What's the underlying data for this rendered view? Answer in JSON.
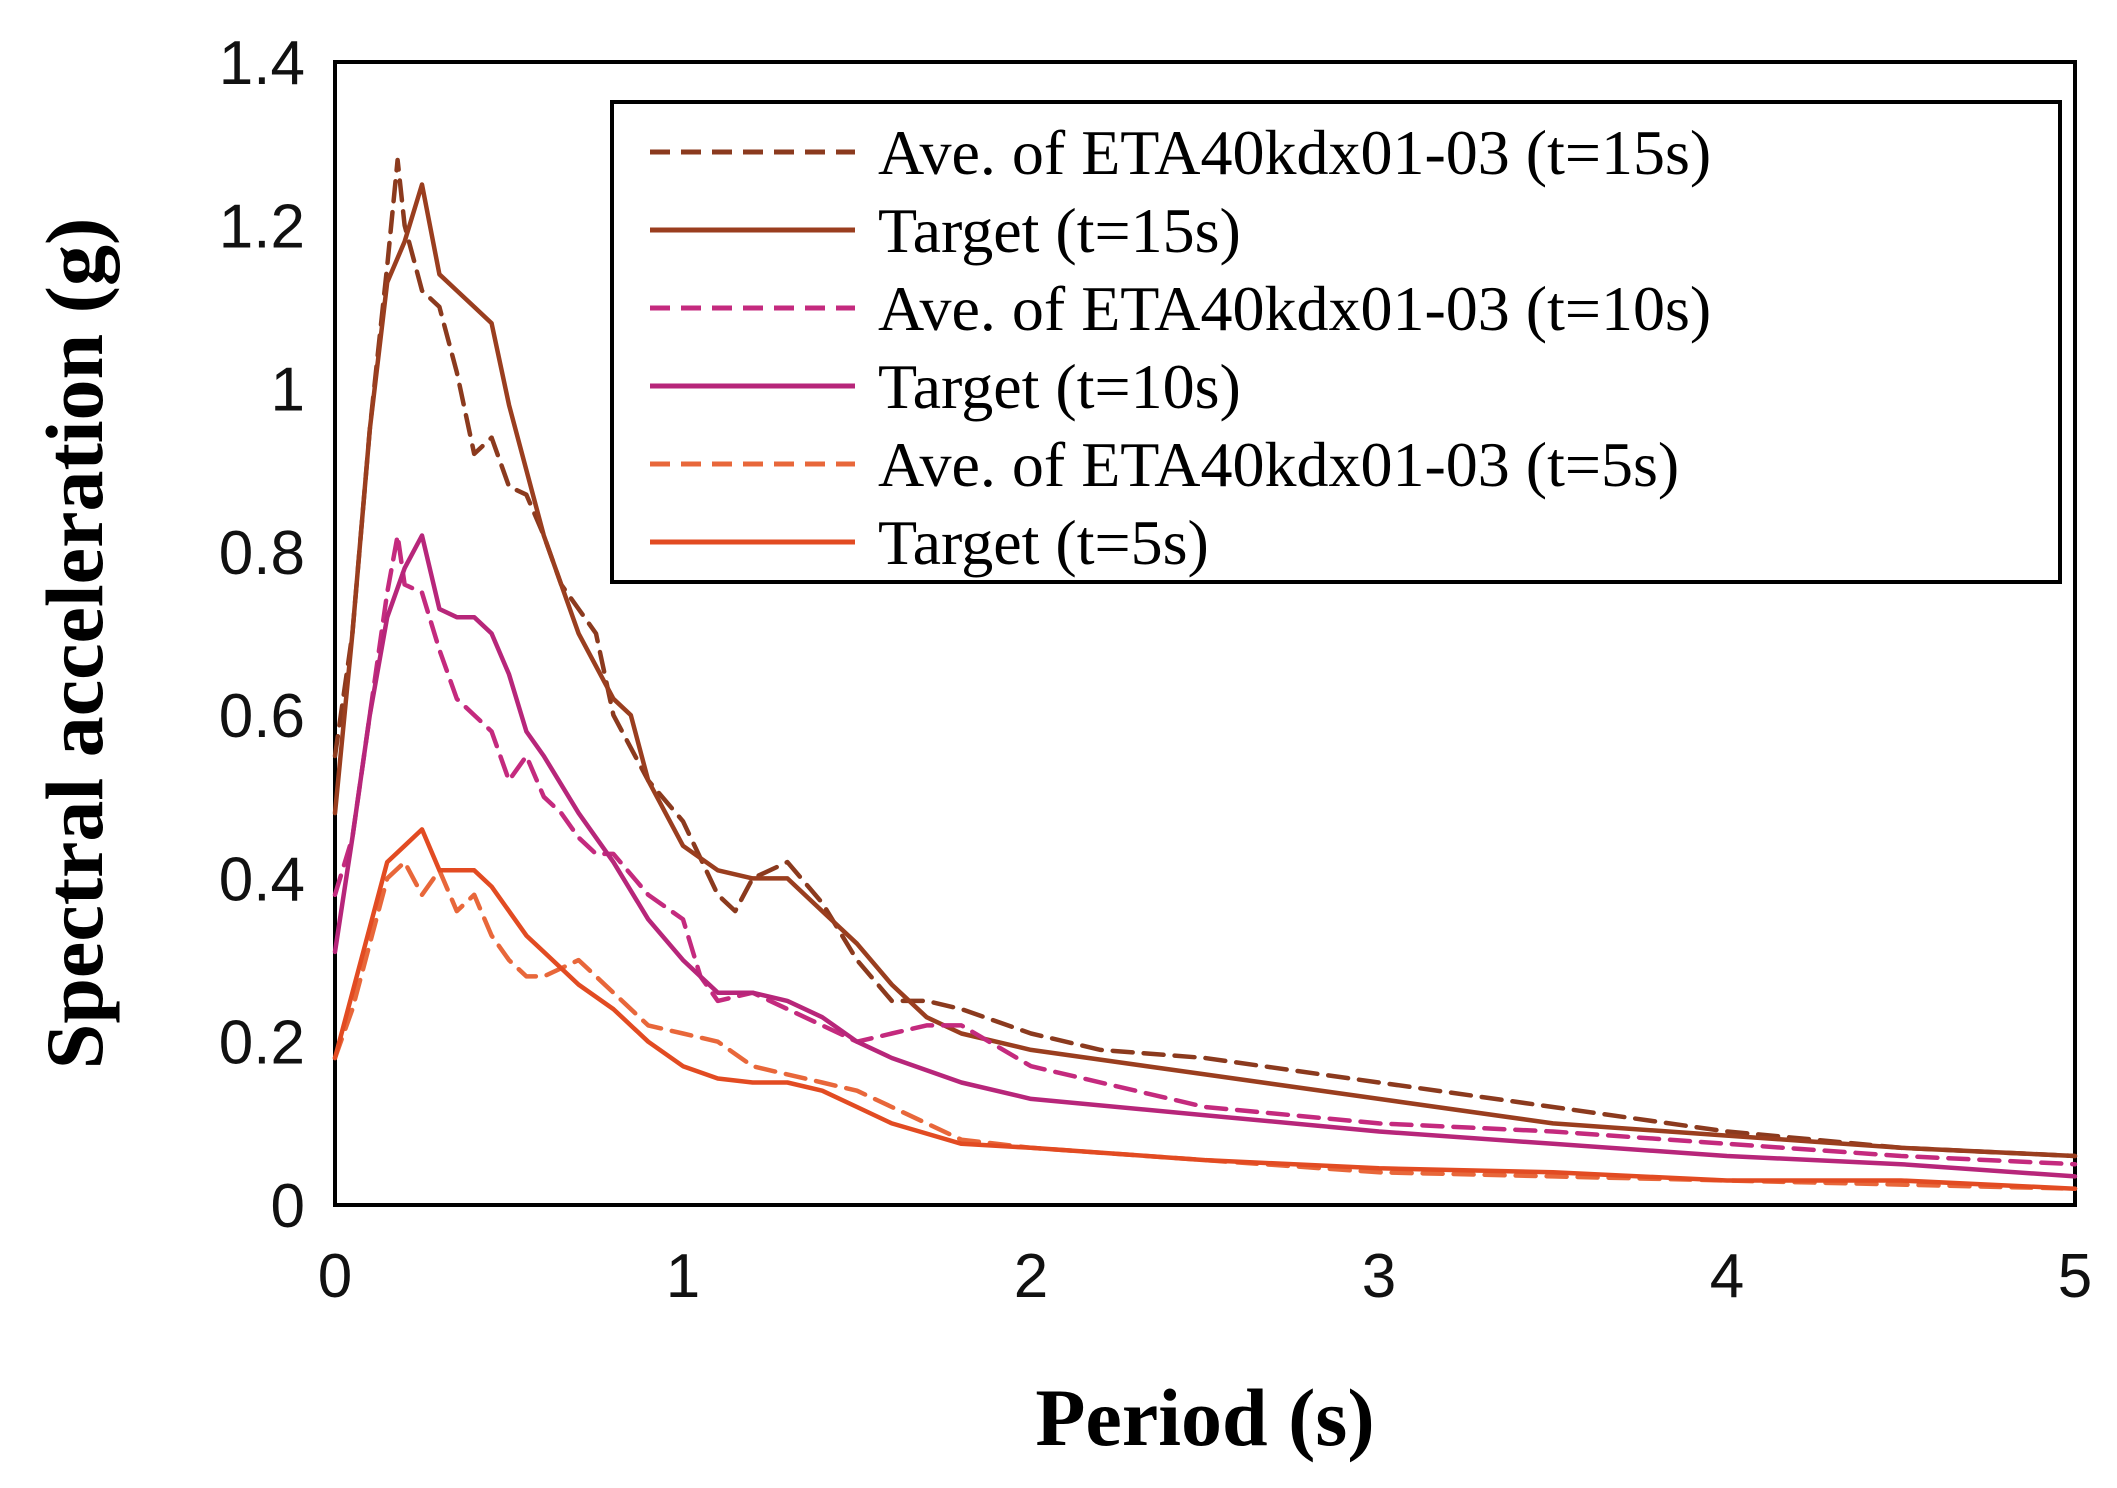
{
  "chart_data": {
    "type": "line",
    "title": "",
    "xlabel": "Period (s)",
    "ylabel": "Spectral acceleration (g)",
    "xlim": [
      0,
      5
    ],
    "ylim": [
      0,
      1.4
    ],
    "xticks": [
      0,
      1,
      2,
      3,
      4,
      5
    ],
    "xtick_labels": [
      "0",
      "1",
      "2",
      "3",
      "4",
      "5"
    ],
    "yticks": [
      0,
      0.2,
      0.4,
      0.6,
      0.8,
      1.0,
      1.2,
      1.4
    ],
    "ytick_labels": [
      "0",
      "0.2",
      "0.4",
      "0.6",
      "0.8",
      "1",
      "1.2",
      "1.4"
    ],
    "grid": false,
    "legend_position": "top-right",
    "series": [
      {
        "name": "Ave. of ETA40kdx01-03 (t=15s)",
        "color": "#8B3A1E",
        "dash": "dashed",
        "x": [
          0,
          0.05,
          0.1,
          0.15,
          0.18,
          0.2,
          0.25,
          0.3,
          0.35,
          0.4,
          0.45,
          0.5,
          0.55,
          0.6,
          0.65,
          0.7,
          0.75,
          0.8,
          0.9,
          1.0,
          1.1,
          1.15,
          1.2,
          1.3,
          1.4,
          1.5,
          1.6,
          1.7,
          1.8,
          2.0,
          2.2,
          2.5,
          3.0,
          3.5,
          4.0,
          4.5,
          5.0
        ],
        "y": [
          0.55,
          0.7,
          0.95,
          1.15,
          1.28,
          1.2,
          1.12,
          1.1,
          1.02,
          0.92,
          0.94,
          0.88,
          0.87,
          0.82,
          0.76,
          0.73,
          0.7,
          0.6,
          0.52,
          0.47,
          0.38,
          0.36,
          0.4,
          0.42,
          0.37,
          0.3,
          0.25,
          0.25,
          0.24,
          0.21,
          0.19,
          0.18,
          0.15,
          0.12,
          0.09,
          0.07,
          0.06
        ]
      },
      {
        "name": "Target (t=15s)",
        "color": "#9A3E1F",
        "dash": "solid",
        "x": [
          0,
          0.05,
          0.1,
          0.15,
          0.2,
          0.25,
          0.3,
          0.35,
          0.4,
          0.45,
          0.5,
          0.55,
          0.6,
          0.7,
          0.8,
          0.85,
          0.9,
          1.0,
          1.1,
          1.2,
          1.3,
          1.4,
          1.5,
          1.6,
          1.7,
          1.8,
          2.0,
          2.5,
          3.0,
          3.5,
          4.0,
          4.5,
          5.0
        ],
        "y": [
          0.48,
          0.7,
          0.95,
          1.13,
          1.18,
          1.25,
          1.14,
          1.12,
          1.1,
          1.08,
          0.98,
          0.9,
          0.82,
          0.7,
          0.62,
          0.6,
          0.52,
          0.44,
          0.41,
          0.4,
          0.4,
          0.36,
          0.32,
          0.27,
          0.23,
          0.21,
          0.19,
          0.16,
          0.13,
          0.1,
          0.085,
          0.07,
          0.06
        ]
      },
      {
        "name": "Ave. of ETA40kdx01-03 (t=10s)",
        "color": "#C42A7E",
        "dash": "dashed",
        "x": [
          0,
          0.05,
          0.1,
          0.15,
          0.18,
          0.2,
          0.25,
          0.3,
          0.35,
          0.4,
          0.45,
          0.5,
          0.55,
          0.6,
          0.65,
          0.7,
          0.75,
          0.8,
          0.9,
          1.0,
          1.05,
          1.1,
          1.2,
          1.4,
          1.5,
          1.6,
          1.7,
          1.8,
          2.0,
          2.5,
          3.0,
          3.5,
          4.0,
          4.5,
          5.0
        ],
        "y": [
          0.38,
          0.45,
          0.6,
          0.75,
          0.82,
          0.76,
          0.75,
          0.68,
          0.62,
          0.6,
          0.58,
          0.52,
          0.55,
          0.5,
          0.48,
          0.45,
          0.43,
          0.43,
          0.38,
          0.35,
          0.28,
          0.25,
          0.26,
          0.22,
          0.2,
          0.21,
          0.22,
          0.22,
          0.17,
          0.12,
          0.1,
          0.09,
          0.075,
          0.06,
          0.05
        ]
      },
      {
        "name": "Target (t=10s)",
        "color": "#B7267A",
        "dash": "solid",
        "x": [
          0,
          0.05,
          0.1,
          0.15,
          0.2,
          0.25,
          0.3,
          0.35,
          0.4,
          0.45,
          0.5,
          0.55,
          0.6,
          0.7,
          0.8,
          0.9,
          1.0,
          1.1,
          1.2,
          1.3,
          1.4,
          1.5,
          1.6,
          1.8,
          2.0,
          2.5,
          3.0,
          3.5,
          4.0,
          4.5,
          5.0
        ],
        "y": [
          0.31,
          0.45,
          0.6,
          0.72,
          0.78,
          0.82,
          0.73,
          0.72,
          0.72,
          0.7,
          0.65,
          0.58,
          0.55,
          0.48,
          0.42,
          0.35,
          0.3,
          0.26,
          0.26,
          0.25,
          0.23,
          0.2,
          0.18,
          0.15,
          0.13,
          0.11,
          0.09,
          0.075,
          0.06,
          0.05,
          0.035
        ]
      },
      {
        "name": "Ave. of ETA40kdx01-03 (t=5s)",
        "color": "#E8673A",
        "dash": "dashed",
        "x": [
          0,
          0.05,
          0.1,
          0.15,
          0.2,
          0.25,
          0.3,
          0.35,
          0.4,
          0.45,
          0.5,
          0.55,
          0.6,
          0.7,
          0.8,
          0.9,
          1.0,
          1.1,
          1.2,
          1.3,
          1.4,
          1.5,
          1.6,
          1.8,
          2.0,
          2.5,
          3.0,
          3.5,
          4.0,
          4.5,
          5.0
        ],
        "y": [
          0.18,
          0.24,
          0.32,
          0.4,
          0.42,
          0.38,
          0.41,
          0.36,
          0.38,
          0.33,
          0.3,
          0.28,
          0.28,
          0.3,
          0.26,
          0.22,
          0.21,
          0.2,
          0.17,
          0.16,
          0.15,
          0.14,
          0.12,
          0.08,
          0.07,
          0.055,
          0.04,
          0.035,
          0.03,
          0.025,
          0.02
        ]
      },
      {
        "name": "Target (t=5s)",
        "color": "#E24B22",
        "dash": "solid",
        "x": [
          0,
          0.05,
          0.1,
          0.15,
          0.2,
          0.25,
          0.3,
          0.35,
          0.4,
          0.45,
          0.5,
          0.55,
          0.6,
          0.7,
          0.8,
          0.9,
          1.0,
          1.1,
          1.2,
          1.3,
          1.4,
          1.5,
          1.6,
          1.8,
          2.0,
          2.5,
          3.0,
          3.5,
          4.0,
          4.5,
          5.0
        ],
        "y": [
          0.18,
          0.26,
          0.34,
          0.42,
          0.44,
          0.46,
          0.41,
          0.41,
          0.41,
          0.39,
          0.36,
          0.33,
          0.31,
          0.27,
          0.24,
          0.2,
          0.17,
          0.155,
          0.15,
          0.15,
          0.14,
          0.12,
          0.1,
          0.075,
          0.07,
          0.055,
          0.045,
          0.04,
          0.03,
          0.03,
          0.02
        ]
      }
    ]
  }
}
